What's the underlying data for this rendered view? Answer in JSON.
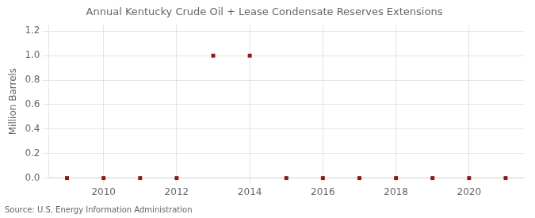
{
  "chart_data": {
    "type": "scatter",
    "title": "Annual Kentucky Crude Oil + Lease Condensate Reserves Extensions",
    "ylabel": "Million Barrels",
    "annotations": [
      "Source: U.S. Energy Information Administration"
    ],
    "x": [
      2009,
      2010,
      2011,
      2012,
      2013,
      2014,
      2015,
      2016,
      2017,
      2018,
      2019,
      2020,
      2021
    ],
    "values": [
      0.0,
      0.0,
      0.0,
      0.0,
      1.0,
      1.0,
      0.0,
      0.0,
      0.0,
      0.0,
      0.0,
      0.0,
      0.0
    ],
    "color": "#8b1a1a",
    "marker": "square",
    "xlim": [
      2008.5,
      2021.5
    ],
    "ylim": [
      0.0,
      1.25
    ],
    "xticks": [
      2010,
      2012,
      2014,
      2016,
      2018,
      2020
    ],
    "yticks": [
      {
        "value": 0.0,
        "label": "0.0"
      },
      {
        "value": 0.2,
        "label": "0.2"
      },
      {
        "value": 0.4,
        "label": "0.4"
      },
      {
        "value": 0.6,
        "label": "0.6"
      },
      {
        "value": 0.8,
        "label": "0.8"
      },
      {
        "value": 1.0,
        "label": "1.0"
      },
      {
        "value": 1.2,
        "label": "1.2"
      }
    ],
    "grid": true
  }
}
